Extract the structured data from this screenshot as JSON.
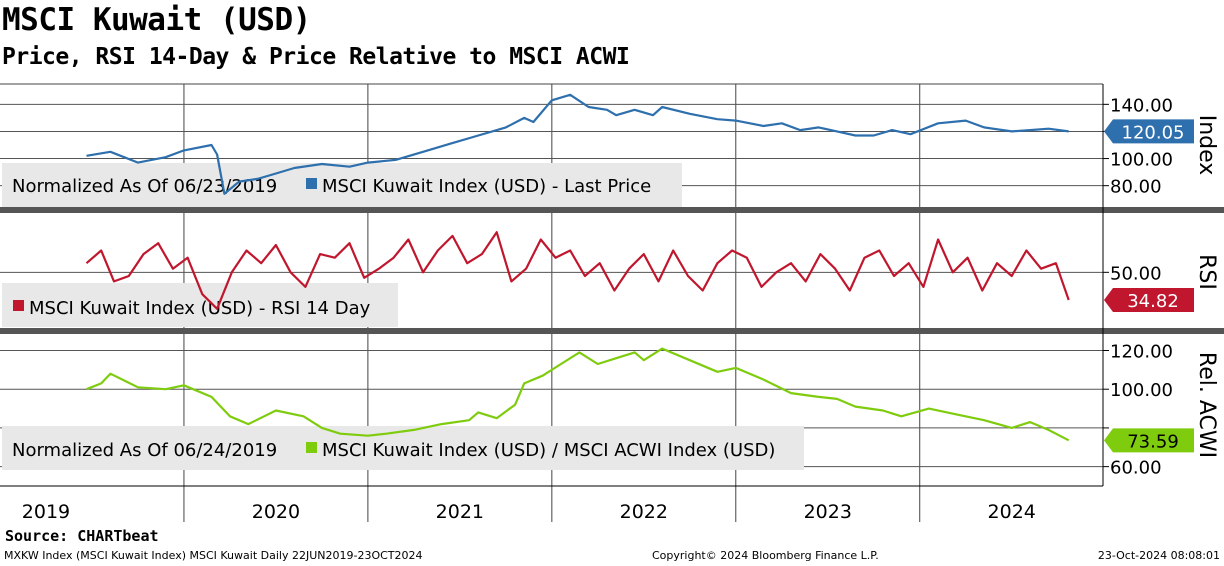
{
  "title": "MSCI Kuwait (USD)",
  "subtitle": "Price, RSI 14-Day & Price Relative to MSCI ACWI",
  "source": "Source: CHARTbeat",
  "footer": {
    "left": "MXKW Index (MSCI Kuwait Index) MSCI Kuwait  Daily 22JUN2019-23OCT2024",
    "center": "Copyright© 2024 Bloomberg Finance L.P.",
    "right": "23-Oct-2024 08:08:01"
  },
  "colors": {
    "price": "#2e6fad",
    "rsi": "#c0172e",
    "relative": "#7fcc0f",
    "grid": "#555555"
  },
  "chart_data": [
    {
      "type": "line",
      "panel": "price",
      "axis_title": "Index",
      "ylim": [
        65,
        155
      ],
      "yticks": [
        80,
        100,
        120,
        140
      ],
      "ytick_labels": [
        "80.00",
        "100.00",
        "",
        "140.00"
      ],
      "last_value": 120.05,
      "last_label": "120.05",
      "legend_note": "Normalized As Of 06/23/2019",
      "series": [
        {
          "name": "MSCI Kuwait Index (USD) - Last Price",
          "x": [
            2019.47,
            2019.6,
            2019.75,
            2019.9,
            2020.0,
            2020.15,
            2020.18,
            2020.22,
            2020.3,
            2020.4,
            2020.5,
            2020.6,
            2020.75,
            2020.9,
            2021.0,
            2021.15,
            2021.3,
            2021.45,
            2021.6,
            2021.75,
            2021.85,
            2021.9,
            2022.0,
            2022.1,
            2022.2,
            2022.3,
            2022.35,
            2022.45,
            2022.55,
            2022.6,
            2022.75,
            2022.9,
            2023.0,
            2023.15,
            2023.25,
            2023.35,
            2023.45,
            2023.55,
            2023.65,
            2023.75,
            2023.85,
            2023.95,
            2024.1,
            2024.25,
            2024.35,
            2024.5,
            2024.6,
            2024.7,
            2024.81
          ],
          "values": [
            102,
            105,
            97,
            101,
            106,
            110,
            103,
            74,
            83,
            85,
            89,
            93,
            96,
            94,
            97,
            99,
            105,
            111,
            117,
            123,
            130,
            127,
            143,
            147,
            138,
            136,
            132,
            136,
            132,
            138,
            133,
            129,
            128,
            124,
            126,
            121,
            123,
            120,
            117,
            117,
            121,
            118,
            126,
            128,
            123,
            120,
            121,
            122,
            120.05
          ]
        }
      ]
    },
    {
      "type": "line",
      "panel": "rsi",
      "axis_title": "RSI",
      "ylim": [
        20,
        82
      ],
      "yticks": [
        50
      ],
      "ytick_labels": [
        "50.00"
      ],
      "last_value": 34.82,
      "last_label": "34.82",
      "series": [
        {
          "name": "MSCI Kuwait Index (USD) - RSI 14 Day",
          "x": [
            2019.47,
            2019.55,
            2019.62,
            2019.7,
            2019.78,
            2019.86,
            2019.94,
            2020.02,
            2020.1,
            2020.18,
            2020.26,
            2020.34,
            2020.42,
            2020.5,
            2020.58,
            2020.66,
            2020.74,
            2020.82,
            2020.9,
            2020.98,
            2021.06,
            2021.14,
            2021.22,
            2021.3,
            2021.38,
            2021.46,
            2021.54,
            2021.62,
            2021.7,
            2021.78,
            2021.86,
            2021.94,
            2022.02,
            2022.1,
            2022.18,
            2022.26,
            2022.34,
            2022.42,
            2022.5,
            2022.58,
            2022.66,
            2022.74,
            2022.82,
            2022.9,
            2022.98,
            2023.06,
            2023.14,
            2023.22,
            2023.3,
            2023.38,
            2023.46,
            2023.54,
            2023.62,
            2023.7,
            2023.78,
            2023.86,
            2023.94,
            2024.02,
            2024.1,
            2024.18,
            2024.26,
            2024.34,
            2024.42,
            2024.5,
            2024.58,
            2024.66,
            2024.74,
            2024.81
          ],
          "values": [
            55,
            62,
            45,
            48,
            60,
            66,
            52,
            58,
            38,
            30,
            50,
            62,
            55,
            65,
            50,
            42,
            60,
            58,
            66,
            47,
            52,
            58,
            68,
            50,
            62,
            70,
            55,
            60,
            72,
            45,
            52,
            68,
            58,
            62,
            48,
            55,
            40,
            52,
            60,
            45,
            62,
            48,
            40,
            55,
            62,
            58,
            42,
            50,
            55,
            45,
            60,
            52,
            40,
            58,
            62,
            48,
            55,
            42,
            68,
            50,
            58,
            40,
            55,
            48,
            62,
            52,
            55,
            34.82
          ]
        }
      ]
    },
    {
      "type": "line",
      "panel": "relative",
      "axis_title": "Rel. ACWI",
      "ylim": [
        50,
        128
      ],
      "yticks": [
        60,
        80,
        100,
        120
      ],
      "ytick_labels": [
        "60.00",
        "",
        "100.00",
        "120.00"
      ],
      "last_value": 73.59,
      "last_label": "73.59",
      "legend_note": "Normalized As Of 06/24/2019",
      "series": [
        {
          "name": "MSCI Kuwait Index (USD) / MSCI ACWI Index (USD)",
          "x": [
            2019.47,
            2019.55,
            2019.6,
            2019.75,
            2019.9,
            2020.0,
            2020.15,
            2020.25,
            2020.35,
            2020.5,
            2020.65,
            2020.75,
            2020.85,
            2021.0,
            2021.1,
            2021.25,
            2021.4,
            2021.55,
            2021.6,
            2021.7,
            2021.8,
            2021.85,
            2021.95,
            2022.05,
            2022.15,
            2022.25,
            2022.35,
            2022.45,
            2022.5,
            2022.6,
            2022.75,
            2022.9,
            2023.0,
            2023.15,
            2023.3,
            2023.45,
            2023.55,
            2023.65,
            2023.8,
            2023.9,
            2024.05,
            2024.2,
            2024.35,
            2024.5,
            2024.6,
            2024.7,
            2024.81
          ],
          "values": [
            100,
            103,
            108,
            101,
            100,
            102,
            96,
            86,
            82,
            89,
            86,
            80,
            77,
            76,
            77,
            79,
            82,
            84,
            88,
            85,
            92,
            103,
            107,
            113,
            119,
            113,
            116,
            119,
            115,
            121,
            115,
            109,
            111,
            105,
            98,
            96,
            95,
            91,
            89,
            86,
            90,
            87,
            84,
            80,
            83,
            79,
            73.59
          ]
        }
      ]
    },
    {
      "type": "axis",
      "panel": "time",
      "xlim": [
        2019.0,
        2024.98
      ],
      "year_boundaries": [
        2020,
        2021,
        2022,
        2023,
        2024
      ],
      "tick_labels": [
        "2019",
        "2020",
        "2021",
        "2022",
        "2023",
        "2024"
      ],
      "label_positions": [
        2019.25,
        2020.5,
        2021.5,
        2022.5,
        2023.5,
        2024.5
      ]
    }
  ]
}
